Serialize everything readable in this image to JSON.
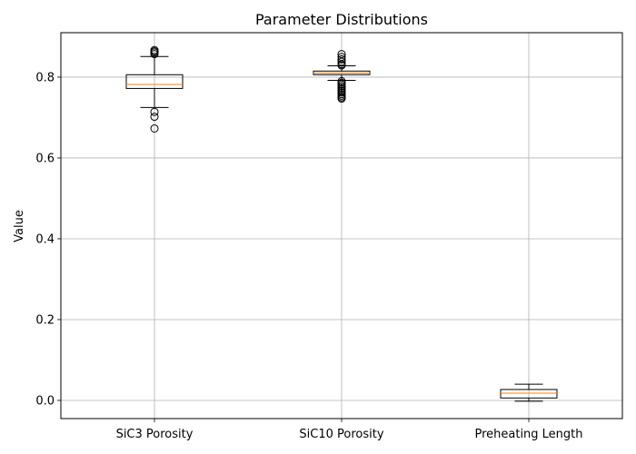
{
  "chart_data": {
    "type": "box",
    "title": "Parameter Distributions",
    "xlabel": "",
    "ylabel": "Value",
    "ylim": [
      -0.045,
      0.91
    ],
    "yticks": [
      0.0,
      0.2,
      0.4,
      0.6,
      0.8
    ],
    "ytick_labels": [
      "0.0",
      "0.2",
      "0.4",
      "0.6",
      "0.8"
    ],
    "grid": true,
    "categories": [
      "SiC3 Porosity",
      "SiC10 Porosity",
      "Preheating Length"
    ],
    "boxes": [
      {
        "name": "SiC3 Porosity",
        "whislo": 0.725,
        "q1": 0.772,
        "med": 0.782,
        "q3": 0.806,
        "whishi": 0.851,
        "fliers": [
          0.857,
          0.861,
          0.864,
          0.867,
          0.714,
          0.702,
          0.673
        ]
      },
      {
        "name": "SiC10 Porosity",
        "whislo": 0.792,
        "q1": 0.806,
        "med": 0.81,
        "q3": 0.815,
        "whishi": 0.828,
        "fliers": [
          0.857,
          0.85,
          0.844,
          0.838,
          0.832,
          0.829,
          0.79,
          0.786,
          0.782,
          0.778,
          0.774,
          0.77,
          0.766,
          0.762,
          0.758,
          0.754,
          0.75,
          0.747
        ]
      },
      {
        "name": "Preheating Length",
        "whislo": -0.002,
        "q1": 0.006,
        "med": 0.018,
        "q3": 0.027,
        "whishi": 0.04,
        "fliers": []
      }
    ],
    "colors": {
      "box": "#000000",
      "median": "#ff7f0e",
      "grid": "#b0b0b0",
      "axis": "#000000"
    }
  }
}
